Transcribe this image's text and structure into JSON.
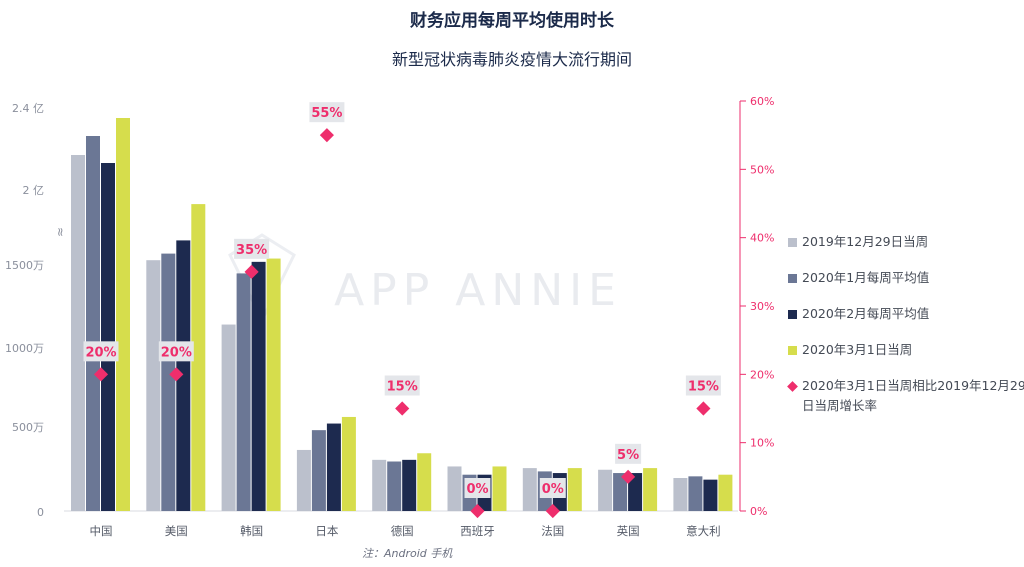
{
  "chart_data": {
    "type": "bar",
    "title": "财务应用每周平均使用时长",
    "subtitle": "新型冠状病毒肺炎疫情大流行期间",
    "categories": [
      "中国",
      "美国",
      "韩国",
      "日本",
      "德国",
      "西班牙",
      "法国",
      "英国",
      "意大利"
    ],
    "left_axis": {
      "tick_labels": [
        "2.4 亿",
        "2 亿",
        "1500万",
        "1000万",
        "500万",
        "0"
      ],
      "break_marker": "≈",
      "scale_note": "broken axis"
    },
    "right_axis": {
      "tick_labels": [
        "60%",
        "50%",
        "40%",
        "30%",
        "20%",
        "10%",
        "0%"
      ],
      "ylim": [
        0,
        60
      ]
    },
    "series": [
      {
        "name": "2019年12月29日当周",
        "color": "#bbc0cc",
        "values": [
          null,
          15200000,
          11300000,
          3700000,
          3100000,
          2700000,
          2600000,
          2500000,
          2000000
        ]
      },
      {
        "name": "2020年1月每周平均值",
        "color": "#6b7795",
        "values": [
          null,
          15600000,
          14400000,
          4900000,
          3000000,
          2200000,
          2400000,
          2300000,
          2100000
        ]
      },
      {
        "name": "2020年2月每周平均值",
        "color": "#1d2a4f",
        "values": [
          null,
          16400000,
          15100000,
          5300000,
          3100000,
          2200000,
          2300000,
          2300000,
          1900000
        ]
      },
      {
        "name": "2020年3月1日当周",
        "color": "#d6dd4c",
        "values": [
          null,
          18600000,
          15300000,
          5700000,
          3500000,
          2700000,
          2600000,
          2600000,
          2200000
        ]
      }
    ],
    "growth_series": {
      "name": "2020年3月1日当周相比2019年12月29日当周增长率",
      "color": "#ee2e6c",
      "values": [
        20,
        20,
        35,
        55,
        15,
        0,
        0,
        5,
        15
      ],
      "labels": [
        "20%",
        "20%",
        "35%",
        "55%",
        "15%",
        "0%",
        "0%",
        "5%",
        "15%"
      ]
    },
    "watermark": "APP ANNIE"
  },
  "legend": [
    {
      "label": "2019年12月29日当周",
      "color": "#bbc0cc",
      "shape": "square"
    },
    {
      "label": "2020年1月每周平均值",
      "color": "#6b7795",
      "shape": "square"
    },
    {
      "label": "2020年2月每周平均值",
      "color": "#1d2a4f",
      "shape": "square"
    },
    {
      "label": "2020年3月1日当周",
      "color": "#d6dd4c",
      "shape": "square"
    },
    {
      "label": "2020年3月1日当周相比2019年12月29日当周增长率",
      "color": "#ee2e6c",
      "shape": "diamond"
    }
  ],
  "footnote": "注：Android 手机"
}
